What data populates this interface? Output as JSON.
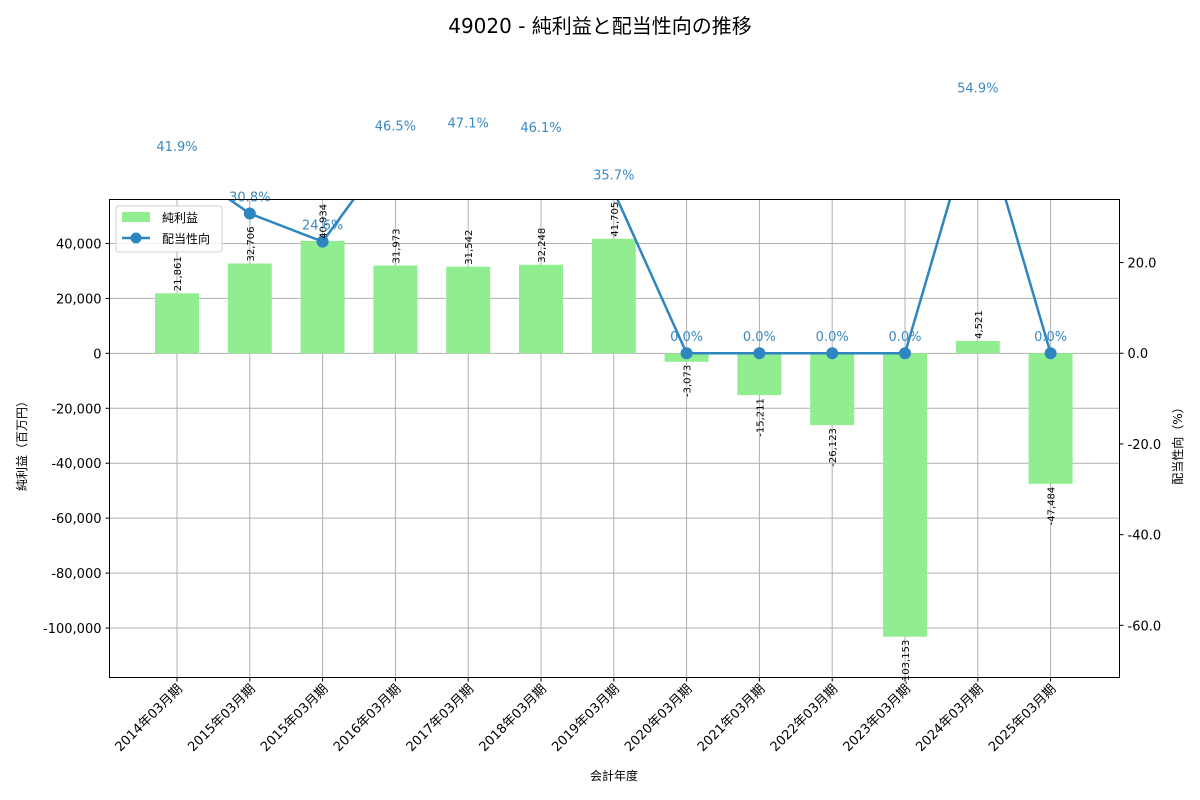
{
  "title": "49020 - 純利益と配当性向の推移",
  "chart_data": {
    "type": "bar+line",
    "title": "49020 - 純利益と配当性向の推移",
    "xlabel": "会計年度",
    "ylabel_left": "純利益（百万円）",
    "ylabel_right": "配当性向（%）",
    "categories": [
      "2014年03月期",
      "2015年03月期",
      "2015年03月期",
      "2016年03月期",
      "2017年03月期",
      "2018年03月期",
      "2019年03月期",
      "2020年03月期",
      "2021年03月期",
      "2022年03月期",
      "2023年03月期",
      "2024年03月期",
      "2025年03月期"
    ],
    "series": [
      {
        "name": "純利益",
        "type": "bar",
        "axis": "left",
        "color": "#90ee90",
        "values": [
          21861,
          32706,
          40934,
          31973,
          31542,
          32248,
          41705,
          -3073,
          -15211,
          -26123,
          -103153,
          4521,
          -47484
        ],
        "labels": [
          "21,861",
          "32,706",
          "40,934",
          "31,973",
          "31,542",
          "32,248",
          "41,705",
          "-3,073",
          "-15,211",
          "-26,123",
          "-103,153",
          "4,521",
          "-47,484"
        ]
      },
      {
        "name": "配当性向",
        "type": "line",
        "axis": "right",
        "color": "#2e86c1",
        "values": [
          41.9,
          30.8,
          24.6,
          46.5,
          47.1,
          46.1,
          35.7,
          0.0,
          0.0,
          0.0,
          0.0,
          54.9,
          0.0
        ],
        "labels": [
          "41.9%",
          "30.8%",
          "24.6%",
          "46.5%",
          "47.1%",
          "46.1%",
          "35.7%",
          "0.0%",
          "0.0%",
          "0.0%",
          "0.0%",
          "54.9%",
          "0.0%"
        ]
      }
    ],
    "ylim_left": [
      -118000,
      56000
    ],
    "ylim_right": [
      -71.5,
      33.9
    ],
    "yticks_left": [
      40000,
      20000,
      0,
      -20000,
      -40000,
      -60000,
      -80000,
      -100000
    ],
    "yticks_left_labels": [
      "40,000",
      "20,000",
      "0",
      "-20,000",
      "-40,000",
      "-60,000",
      "-80,000",
      "-100,000"
    ],
    "yticks_right": [
      20,
      0,
      -20,
      -40,
      -60
    ],
    "yticks_right_labels": [
      "20.0",
      "0.0",
      "-20.0",
      "-40.0",
      "-60.0"
    ],
    "grid": true,
    "legend": {
      "position": "upper left",
      "entries": [
        "純利益",
        "配当性向"
      ]
    }
  }
}
